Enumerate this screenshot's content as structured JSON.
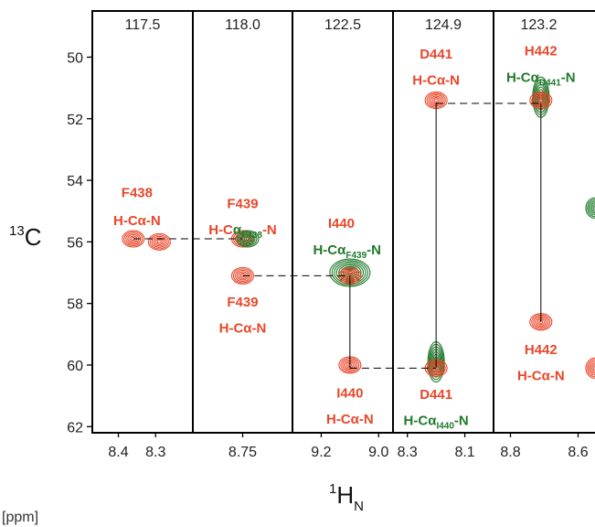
{
  "colors": {
    "red": "#e8472a",
    "green": "#1f7a2a",
    "frame": "#000000"
  },
  "axis": {
    "ylabel_sup": "13",
    "ylabel_main": "C",
    "xlabel_sup": "1",
    "xlabel_main": "H",
    "xlabel_sub": "N",
    "unit": "[ppm]"
  },
  "chart_data": {
    "type": "scatter",
    "title": "",
    "ylabel": "13C",
    "xlabel": "1HN",
    "ylim": [
      62.2,
      48.5
    ],
    "yticks": [
      50,
      52,
      54,
      56,
      58,
      60,
      62
    ],
    "ytick_labels": [
      "50",
      "52",
      "54",
      "56",
      "58",
      "60",
      "62"
    ],
    "strips": [
      {
        "n15": "117.5",
        "xlim": [
          8.47,
          8.2
        ],
        "xticks": [
          8.4,
          8.3
        ],
        "xtick_labels": [
          "8.4",
          "8.3"
        ],
        "peaks": [
          {
            "x": 8.36,
            "y": 55.9,
            "color": "red"
          },
          {
            "x": 8.29,
            "y": 56.0,
            "color": "red"
          }
        ],
        "labels": [
          {
            "x": 8.35,
            "y": 54.4,
            "lines": [
              {
                "t": "F438"
              }
            ],
            "color": "red"
          },
          {
            "x": 8.35,
            "y": 55.3,
            "lines": [
              {
                "t": "H-Cα-N"
              }
            ],
            "color": "red"
          }
        ]
      },
      {
        "n15": "118.0",
        "xlim": [
          8.95,
          8.55
        ],
        "xticks": [
          8.75
        ],
        "xtick_labels": [
          "8.75"
        ],
        "peaks": [
          {
            "x": 8.75,
            "y": 55.9,
            "color": "red"
          },
          {
            "x": 8.73,
            "y": 55.9,
            "color": "green"
          },
          {
            "x": 8.75,
            "y": 57.1,
            "color": "red"
          }
        ],
        "labels": [
          {
            "x": 8.75,
            "y": 54.75,
            "lines": [
              {
                "t": "F439"
              }
            ],
            "color": "red"
          },
          {
            "x": 8.75,
            "y": 55.6,
            "parts": [
              {
                "t": "H-C",
                "c": "red"
              },
              {
                "t": "α",
                "c": "green"
              },
              {
                "t": "F438",
                "c": "green",
                "sub": true
              },
              {
                "t": "-N",
                "c": "red"
              }
            ]
          },
          {
            "x": 8.75,
            "y": 57.95,
            "lines": [
              {
                "t": "F439"
              }
            ],
            "color": "red"
          },
          {
            "x": 8.75,
            "y": 58.8,
            "lines": [
              {
                "t": "H-Cα-N"
              }
            ],
            "color": "red"
          }
        ]
      },
      {
        "n15": "122.5",
        "xlim": [
          9.3,
          8.95
        ],
        "xticks": [
          9.2,
          9.0
        ],
        "xtick_labels": [
          "9.2",
          "9.0"
        ],
        "peaks": [
          {
            "x": 9.1,
            "y": 57.0,
            "color": "green",
            "big": true
          },
          {
            "x": 9.1,
            "y": 57.1,
            "color": "red"
          },
          {
            "x": 9.1,
            "y": 60.0,
            "color": "red"
          }
        ],
        "labels": [
          {
            "x": 9.13,
            "y": 55.4,
            "lines": [
              {
                "t": "I440"
              }
            ],
            "color": "red"
          },
          {
            "x": 9.11,
            "y": 56.25,
            "parts": [
              {
                "t": "H-C",
                "c": "green"
              },
              {
                "t": "α",
                "c": "green"
              },
              {
                "t": "F439",
                "c": "green",
                "sub": true
              },
              {
                "t": "-N",
                "c": "green"
              }
            ]
          },
          {
            "x": 9.1,
            "y": 60.9,
            "lines": [
              {
                "t": "I440"
              }
            ],
            "color": "red"
          },
          {
            "x": 9.1,
            "y": 61.75,
            "lines": [
              {
                "t": "H-Cα-N"
              }
            ],
            "color": "red"
          }
        ]
      },
      {
        "n15": "124.9",
        "xlim": [
          8.35,
          8.0
        ],
        "xticks": [
          8.3,
          8.1
        ],
        "xtick_labels": [
          "8.3",
          "8.1"
        ],
        "peaks": [
          {
            "x": 8.2,
            "y": 51.4,
            "color": "red"
          },
          {
            "x": 8.2,
            "y": 59.9,
            "color": "green",
            "tall": true
          },
          {
            "x": 8.2,
            "y": 60.1,
            "color": "red"
          }
        ],
        "labels": [
          {
            "x": 8.2,
            "y": 49.9,
            "lines": [
              {
                "t": "D441"
              }
            ],
            "color": "red"
          },
          {
            "x": 8.2,
            "y": 50.75,
            "lines": [
              {
                "t": "H-Cα-N"
              }
            ],
            "color": "red"
          },
          {
            "x": 8.2,
            "y": 60.95,
            "lines": [
              {
                "t": "D441"
              }
            ],
            "color": "red"
          },
          {
            "x": 8.2,
            "y": 61.8,
            "parts": [
              {
                "t": "H-C",
                "c": "green"
              },
              {
                "t": "α",
                "c": "green"
              },
              {
                "t": "I440",
                "c": "green",
                "sub": true
              },
              {
                "t": "-N",
                "c": "green"
              }
            ]
          }
        ]
      },
      {
        "n15": "123.2",
        "xlim": [
          8.85,
          8.55
        ],
        "xticks": [
          8.8,
          8.6
        ],
        "xtick_labels": [
          "8.8",
          "8.6"
        ],
        "peaks": [
          {
            "x": 8.71,
            "y": 51.3,
            "color": "green",
            "tall": true
          },
          {
            "x": 8.71,
            "y": 51.4,
            "color": "red"
          },
          {
            "x": 8.71,
            "y": 58.6,
            "color": "red"
          },
          {
            "x": 8.55,
            "y": 54.9,
            "color": "green",
            "edge": true
          },
          {
            "x": 8.55,
            "y": 60.1,
            "color": "red",
            "edge": true
          }
        ],
        "labels": [
          {
            "x": 8.71,
            "y": 49.8,
            "lines": [
              {
                "t": "H442"
              }
            ],
            "color": "red"
          },
          {
            "x": 8.71,
            "y": 50.65,
            "parts": [
              {
                "t": "H-C",
                "c": "green"
              },
              {
                "t": "α",
                "c": "green"
              },
              {
                "t": "D441",
                "c": "green",
                "sub": true
              },
              {
                "t": "-N",
                "c": "green"
              }
            ]
          },
          {
            "x": 8.71,
            "y": 59.5,
            "lines": [
              {
                "t": "H442"
              }
            ],
            "color": "red"
          },
          {
            "x": 8.71,
            "y": 60.35,
            "lines": [
              {
                "t": "H-Cα-N"
              }
            ],
            "color": "red"
          }
        ]
      }
    ],
    "connections": [
      {
        "from": [
          0,
          8.36,
          55.9
        ],
        "to": [
          1,
          8.75,
          55.9
        ],
        "style": "dashed"
      },
      {
        "from": [
          1,
          8.75,
          57.1
        ],
        "to": [
          2,
          9.1,
          57.1
        ],
        "style": "dashed"
      },
      {
        "from": [
          2,
          9.1,
          57.1
        ],
        "to": [
          2,
          9.1,
          60.1
        ],
        "style": "solid"
      },
      {
        "from": [
          2,
          9.1,
          60.1
        ],
        "to": [
          3,
          8.2,
          60.1
        ],
        "style": "dashed"
      },
      {
        "from": [
          3,
          8.2,
          60.1
        ],
        "to": [
          3,
          8.2,
          51.5
        ],
        "style": "solid"
      },
      {
        "from": [
          3,
          8.2,
          51.5
        ],
        "to": [
          4,
          8.71,
          51.5
        ],
        "style": "dashed"
      },
      {
        "from": [
          4,
          8.71,
          51.5
        ],
        "to": [
          4,
          8.71,
          58.6
        ],
        "style": "solid"
      }
    ]
  }
}
